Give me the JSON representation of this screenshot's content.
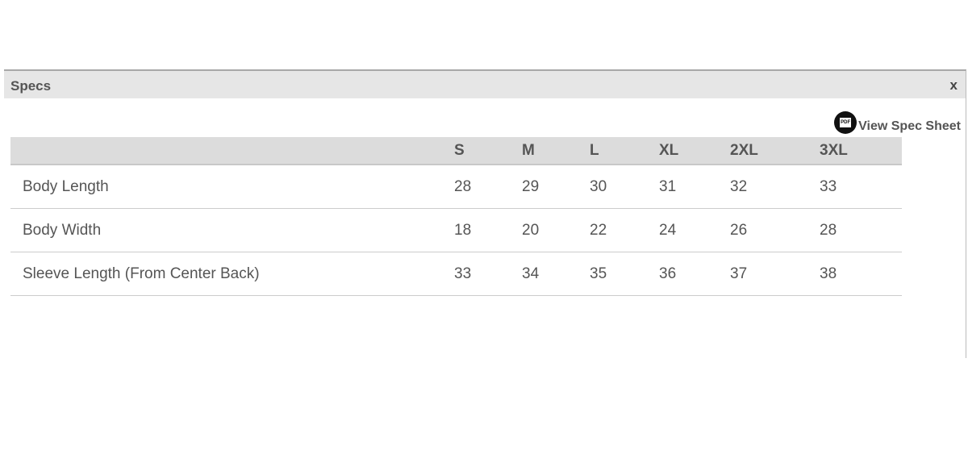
{
  "panel": {
    "title": "Specs",
    "close": "x",
    "spec_sheet_link": "View Spec Sheet",
    "icon": "pdf-icon"
  },
  "table": {
    "headers": [
      "",
      "S",
      "M",
      "L",
      "XL",
      "2XL",
      "3XL"
    ],
    "rows": [
      {
        "label": "Body Length",
        "values": [
          "28",
          "29",
          "30",
          "31",
          "32",
          "33"
        ]
      },
      {
        "label": "Body Width",
        "values": [
          "18",
          "20",
          "22",
          "24",
          "26",
          "28"
        ]
      },
      {
        "label": "Sleeve Length (From Center Back)",
        "values": [
          "33",
          "34",
          "35",
          "36",
          "37",
          "38"
        ]
      }
    ]
  }
}
